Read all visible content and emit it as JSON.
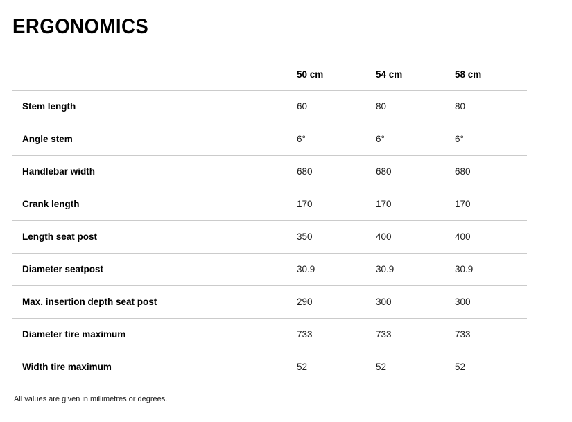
{
  "page": {
    "title": "ERGONOMICS",
    "footnote": "All values are given in millimetres or degrees."
  },
  "colors": {
    "text": "#000000",
    "value_text": "#1a1a1a",
    "row_divider": "#cbcbcb",
    "background": "#ffffff"
  },
  "table": {
    "columns": [
      "50 cm",
      "54 cm",
      "58 cm"
    ],
    "rows": [
      {
        "label": "Stem length",
        "values": [
          "60",
          "80",
          "80"
        ]
      },
      {
        "label": "Angle stem",
        "values": [
          "6°",
          "6°",
          "6°"
        ]
      },
      {
        "label": "Handlebar width",
        "values": [
          "680",
          "680",
          "680"
        ]
      },
      {
        "label": "Crank length",
        "values": [
          "170",
          "170",
          "170"
        ]
      },
      {
        "label": "Length seat post",
        "values": [
          "350",
          "400",
          "400"
        ]
      },
      {
        "label": "Diameter seatpost",
        "values": [
          "30.9",
          "30.9",
          "30.9"
        ]
      },
      {
        "label": "Max. insertion depth seat post",
        "values": [
          "290",
          "300",
          "300"
        ]
      },
      {
        "label": "Diameter tire maximum",
        "values": [
          "733",
          "733",
          "733"
        ]
      },
      {
        "label": "Width tire maximum",
        "values": [
          "52",
          "52",
          "52"
        ]
      }
    ]
  }
}
